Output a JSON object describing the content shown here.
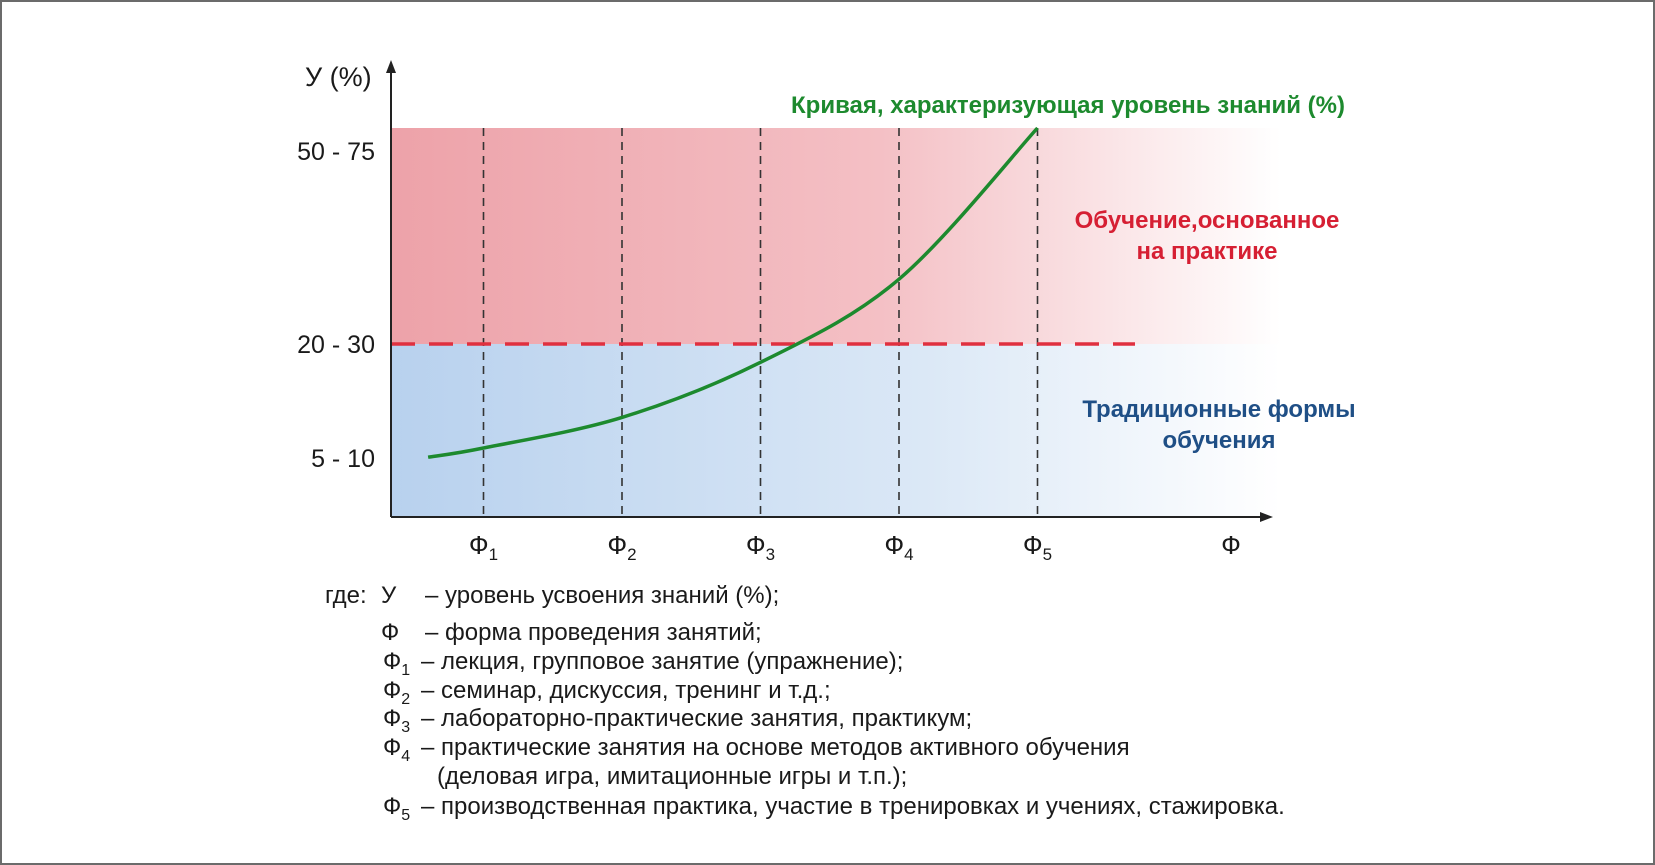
{
  "chart_data": {
    "type": "line",
    "y_axis_label": "У (%)",
    "y_ticks": [
      "50 - 75",
      "20 - 30",
      "5 - 10"
    ],
    "x_axis_label": "Ф",
    "x_ticks": [
      {
        "main": "Ф",
        "sub": "1"
      },
      {
        "main": "Ф",
        "sub": "2"
      },
      {
        "main": "Ф",
        "sub": "3"
      },
      {
        "main": "Ф",
        "sub": "4"
      },
      {
        "main": "Ф",
        "sub": "5"
      }
    ],
    "curve_label": "Кривая, характеризующая уровень знаний (%)",
    "curve_color": "#1d8a2e",
    "curve_points": [
      {
        "x": 0.6,
        "y": 6.5
      },
      {
        "x": 1,
        "y": 8
      },
      {
        "x": 2,
        "y": 13
      },
      {
        "x": 3,
        "y": 22
      },
      {
        "x": 4,
        "y": 40
      },
      {
        "x": 5,
        "y": 75
      }
    ],
    "threshold_color": "#e0303f",
    "zones": {
      "upper_label_lines": [
        "Обучение,основанное",
        "на практике"
      ],
      "upper_color": "#f2a9b0",
      "lower_label_lines": [
        "Традиционные формы",
        "обучения"
      ],
      "lower_color": "#b9d3ee"
    }
  },
  "legend": {
    "lead": "где:",
    "rows": [
      {
        "sym": "У",
        "sub": "",
        "text": "– уровень усвоения знаний (%);"
      },
      {
        "sym": "Ф",
        "sub": "",
        "text": "– форма проведения занятий;"
      },
      {
        "sym": "Ф",
        "sub": "1",
        "text": "– лекция, групповое занятие (упражнение);"
      },
      {
        "sym": "Ф",
        "sub": "2",
        "text": "– семинар, дискуссия, тренинг и т.д.;"
      },
      {
        "sym": "Ф",
        "sub": "3",
        "text": "– лабораторно-практические занятия, практикум;"
      },
      {
        "sym": "Ф",
        "sub": "4",
        "text": "– практические занятия на основе методов активного обучения"
      },
      {
        "sym": "",
        "sub": "",
        "text": "(деловая игра, имитационные игры и т.п.);"
      },
      {
        "sym": "Ф",
        "sub": "5",
        "text": "– производственная практика, участие в тренировках и учениях, стажировка."
      }
    ]
  }
}
